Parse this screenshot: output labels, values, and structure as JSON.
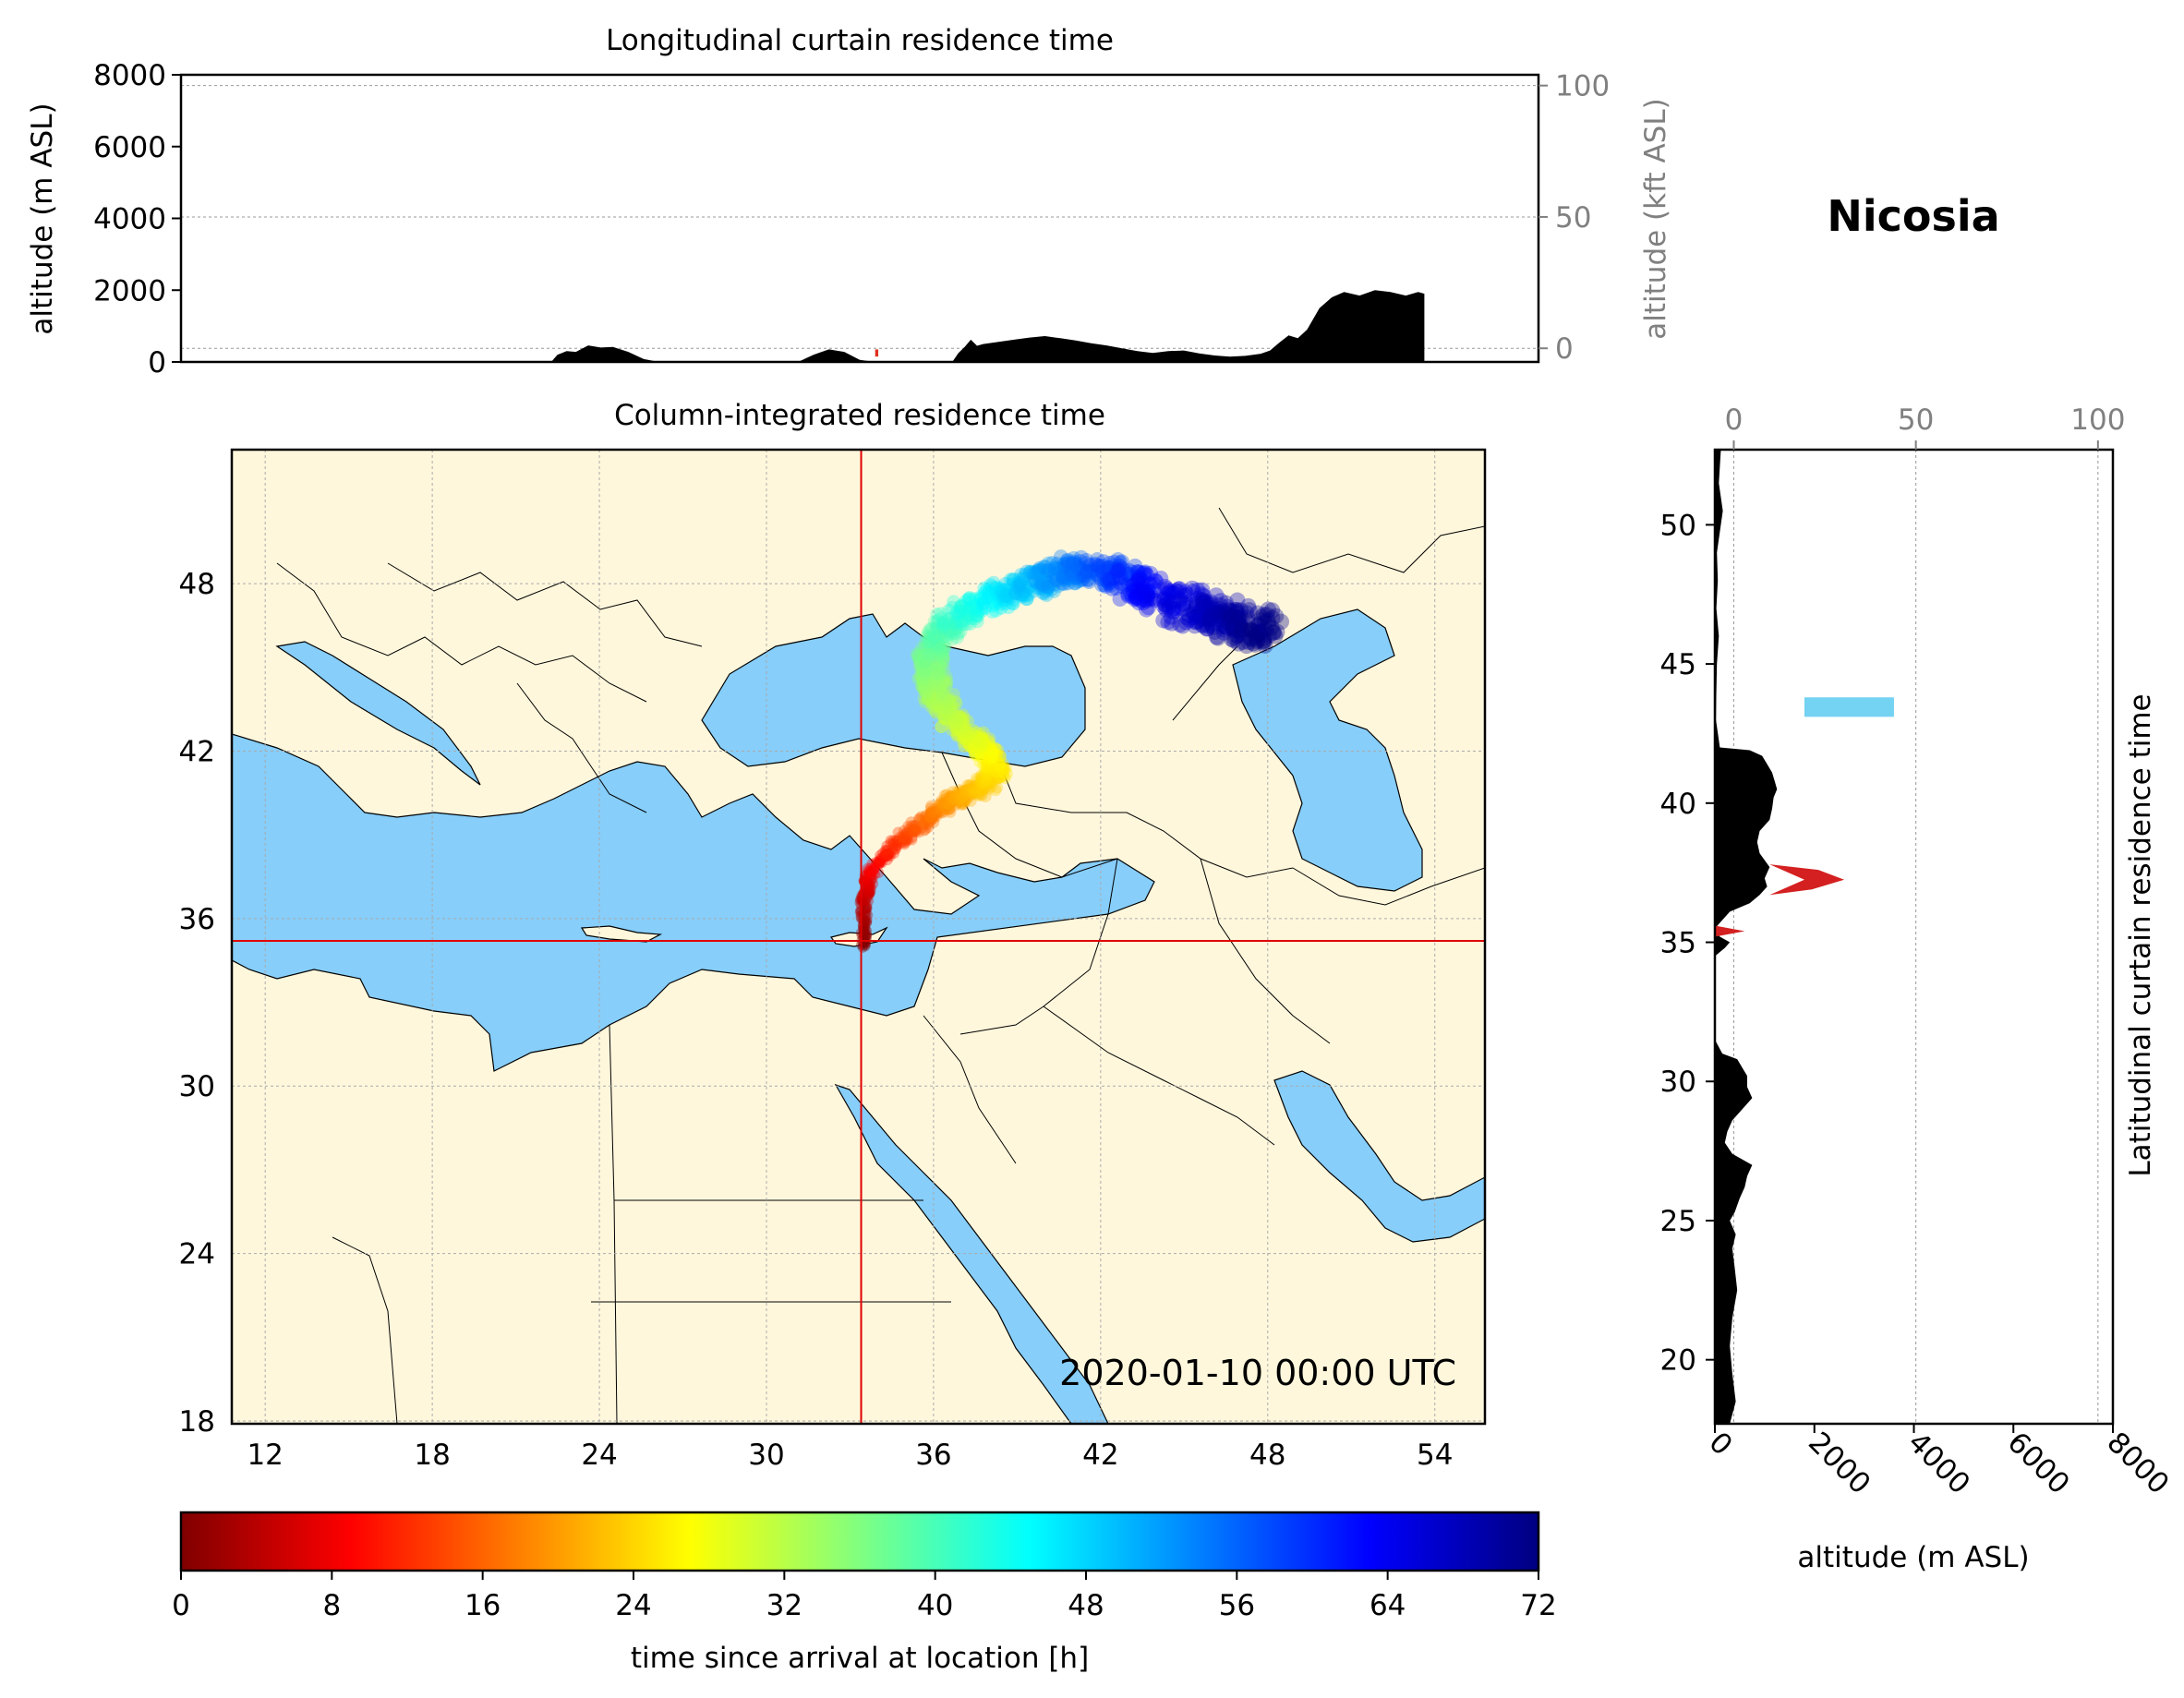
{
  "station": {
    "name": "Nicosia",
    "lon": 33.4,
    "lat": 35.2
  },
  "timestamp": "2020-01-10 00:00 UTC",
  "chart_data": [
    {
      "id": "longitudinal",
      "type": "area",
      "title": "Longitudinal curtain residence time",
      "ylabel": "altitude (m ASL)",
      "ylabel_right": "altitude (kft ASL)",
      "xlim": [
        11,
        55
      ],
      "ylim": [
        0,
        8000
      ],
      "yticks": [
        "0",
        "2000",
        "4000",
        "6000",
        "8000"
      ],
      "yticks_right": [
        "0",
        "50",
        "100"
      ],
      "terrain": {
        "lon": [
          11,
          23,
          23.2,
          23.5,
          23.8,
          24.2,
          24.6,
          25,
          25.5,
          26,
          26.5,
          27,
          31,
          31.5,
          32,
          32.5,
          33,
          33.5,
          34,
          36,
          36.2,
          36.4,
          36.6,
          36.8,
          37,
          37.5,
          38,
          38.5,
          39,
          39.5,
          40,
          40.5,
          41,
          41.5,
          42,
          42.5,
          43,
          43.5,
          44,
          44.5,
          45,
          45.5,
          46,
          46.3,
          46.6,
          46.9,
          47.2,
          47.5,
          47.9,
          48.3,
          48.7,
          49.2,
          49.7,
          50.2,
          50.7,
          51.1,
          51.3,
          51.3
        ],
        "alt": [
          0,
          0,
          200,
          300,
          280,
          460,
          400,
          420,
          280,
          80,
          0,
          0,
          0,
          200,
          350,
          280,
          60,
          0,
          0,
          0,
          250,
          420,
          620,
          450,
          500,
          560,
          620,
          680,
          720,
          660,
          600,
          520,
          460,
          380,
          300,
          250,
          300,
          320,
          240,
          180,
          150,
          170,
          230,
          320,
          540,
          740,
          660,
          900,
          1500,
          1800,
          1950,
          1850,
          2000,
          1950,
          1850,
          1950,
          1900,
          0
        ]
      },
      "plume": {
        "lon": [
          33.5,
          33.6
        ],
        "alt": [
          150,
          350
        ]
      }
    },
    {
      "id": "latitudinal",
      "type": "area",
      "ylabel": "Latitudinal curtain residence time",
      "xlabel": "altitude (m ASL)",
      "xlim": [
        0,
        8000
      ],
      "ylim": [
        17.7,
        52.7
      ],
      "xticks": [
        "0",
        "2000",
        "4000",
        "6000",
        "8000"
      ],
      "xticks_top": [
        "0",
        "50",
        "100"
      ],
      "yticks": [
        "20",
        "25",
        "30",
        "35",
        "40",
        "45",
        "50"
      ],
      "terrain": {
        "lat": [
          52.7,
          51.5,
          50.5,
          49,
          48,
          47,
          46,
          45,
          44,
          43,
          42,
          41.9,
          41.7,
          41.4,
          41.1,
          40.8,
          40.5,
          40.2,
          39.8,
          39.4,
          39,
          38.6,
          38.2,
          37.7,
          37.3,
          37,
          36.7,
          36.4,
          36.1,
          35.5,
          35.2,
          35.0,
          34.8,
          34.5,
          33,
          31.5,
          31,
          30.8,
          30.5,
          30.2,
          29.8,
          29.4,
          29,
          28.6,
          28.2,
          27.8,
          27.4,
          27,
          26.6,
          26.2,
          25.8,
          25.3,
          25,
          24.5,
          24,
          23.3,
          22.5,
          21.5,
          20.5,
          19.5,
          18.5,
          17.7
        ],
        "alt": [
          120,
          80,
          160,
          40,
          60,
          30,
          80,
          40,
          30,
          20,
          100,
          700,
          950,
          1050,
          1150,
          1200,
          1250,
          1180,
          1150,
          1100,
          900,
          850,
          900,
          1100,
          1000,
          1050,
          900,
          700,
          300,
          0,
          100,
          300,
          200,
          0,
          0,
          0,
          150,
          450,
          550,
          650,
          650,
          750,
          550,
          350,
          250,
          200,
          350,
          750,
          650,
          600,
          500,
          400,
          300,
          420,
          350,
          400,
          450,
          350,
          300,
          350,
          420,
          300
        ]
      },
      "plume_red": {
        "lat": [
          36.7,
          37.8
        ],
        "alt": [
          1100,
          2600
        ]
      },
      "plume_red_small": {
        "lat": [
          35.2,
          35.6
        ],
        "alt": [
          0,
          600
        ]
      },
      "plume_cyan": {
        "lat": [
          43.1,
          43.8
        ],
        "alt": [
          1800,
          3600
        ]
      }
    },
    {
      "id": "map",
      "type": "scatter",
      "title": "Column-integrated residence time",
      "xlim": [
        10.8,
        55.8
      ],
      "ylim": [
        17.9,
        52.8
      ],
      "xticks": [
        "12",
        "18",
        "24",
        "30",
        "36",
        "42",
        "48",
        "54"
      ],
      "yticks": [
        "18",
        "24",
        "30",
        "36",
        "42",
        "48"
      ],
      "trajectory": {
        "lon": [
          33.5,
          33.5,
          33.7,
          34.6,
          35.7,
          36.4,
          37.0,
          37.8,
          38.3,
          37.9,
          37.3,
          36.6,
          36.1,
          35.9,
          35.9,
          36.4,
          37.3,
          38.4,
          39.4,
          40.3,
          41.3,
          42.3,
          43.3,
          44.3,
          45.3,
          46.3,
          47.3,
          47.8
        ],
        "lat": [
          35.0,
          36.5,
          37.6,
          38.7,
          39.5,
          40.1,
          40.4,
          40.7,
          41.3,
          42.0,
          42.5,
          43.2,
          44.0,
          44.8,
          45.6,
          46.4,
          47.1,
          47.6,
          48.0,
          48.3,
          48.5,
          48.3,
          48.0,
          47.5,
          47.1,
          46.8,
          46.5,
          46.3
        ],
        "hours": [
          0,
          4,
          8,
          12,
          16,
          19,
          21,
          23,
          25,
          27,
          29,
          31,
          33,
          35,
          37,
          40,
          43,
          46,
          49,
          52,
          55,
          58,
          61,
          64,
          66,
          68,
          70,
          72
        ]
      }
    },
    {
      "id": "colorbar",
      "type": "heatmap",
      "xlabel": "time since arrival at location [h]",
      "range": [
        0,
        72
      ],
      "ticks": [
        "0",
        "8",
        "16",
        "24",
        "32",
        "40",
        "48",
        "56",
        "64",
        "72"
      ],
      "colormap": [
        "#800000",
        "#ff0000",
        "#ff8000",
        "#ffff00",
        "#80ff80",
        "#00ffff",
        "#0080ff",
        "#0000ff",
        "#000080"
      ]
    }
  ]
}
